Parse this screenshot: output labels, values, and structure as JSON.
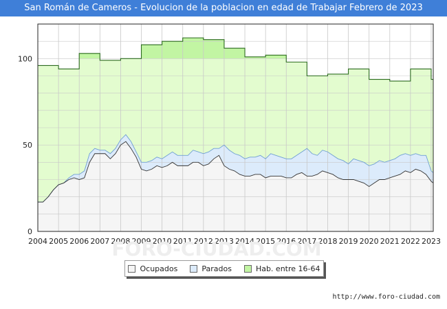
{
  "title": "San Román de Cameros - Evolucion de la poblacion en edad de Trabajar Febrero de 2023",
  "source_url": "http://www.foro-ciudad.com",
  "watermark": "FORO-CIUDAD.COM",
  "colors": {
    "title_bg": "#3f7fd8",
    "hab_fill": "#e3fccf",
    "hab_fill_highlight": "#c2f5a3",
    "hab_line": "#2b6a1e",
    "parados_fill": "#dcebfb",
    "parados_line": "#6f9fd3",
    "ocupados_fill": "#f5f5f5",
    "ocupados_line": "#333333",
    "grid": "#c8c8c8"
  },
  "chart_data": {
    "type": "area",
    "title": "San Román de Cameros - Evolucion de la poblacion en edad de Trabajar Febrero de 2023",
    "xlabel": "",
    "ylabel": "",
    "xlim": [
      2004,
      2023
    ],
    "ylim": [
      0,
      120
    ],
    "x_ticks": [
      "2004",
      "2005",
      "2006",
      "2007",
      "2008",
      "2009",
      "2010",
      "2011",
      "2012",
      "2013",
      "2014",
      "2015",
      "2016",
      "2017",
      "2018",
      "2019",
      "2020",
      "2021",
      "2022",
      "2023"
    ],
    "y_ticks": [
      0,
      50,
      100
    ],
    "grid": true,
    "legend_position": "bottom",
    "legend": [
      "Ocupados",
      "Parados",
      "Hab. entre 16-64"
    ],
    "hab_16_64": {
      "name": "Hab. entre 16-64",
      "x": [
        2004,
        2005,
        2006,
        2007,
        2008,
        2009,
        2010,
        2011,
        2012,
        2013,
        2014,
        2015,
        2016,
        2017,
        2018,
        2019,
        2020,
        2021,
        2022,
        2023
      ],
      "values": [
        96,
        94,
        103,
        99,
        100,
        108,
        110,
        112,
        111,
        106,
        101,
        102,
        98,
        90,
        91,
        94,
        88,
        87,
        94,
        88
      ]
    },
    "parados_top": {
      "name": "Parados",
      "x": [
        2004.0,
        2004.25,
        2004.5,
        2004.75,
        2005.0,
        2005.25,
        2005.5,
        2005.75,
        2006.0,
        2006.25,
        2006.5,
        2006.75,
        2007.0,
        2007.25,
        2007.5,
        2007.75,
        2008.0,
        2008.25,
        2008.5,
        2008.75,
        2009.0,
        2009.25,
        2009.5,
        2009.75,
        2010.0,
        2010.25,
        2010.5,
        2010.75,
        2011.0,
        2011.25,
        2011.5,
        2011.75,
        2012.0,
        2012.25,
        2012.5,
        2012.75,
        2013.0,
        2013.25,
        2013.5,
        2013.75,
        2014.0,
        2014.25,
        2014.5,
        2014.75,
        2015.0,
        2015.25,
        2015.5,
        2015.75,
        2016.0,
        2016.25,
        2016.5,
        2016.75,
        2017.0,
        2017.25,
        2017.5,
        2017.75,
        2018.0,
        2018.25,
        2018.5,
        2018.75,
        2019.0,
        2019.25,
        2019.5,
        2019.75,
        2020.0,
        2020.25,
        2020.5,
        2020.75,
        2021.0,
        2021.25,
        2021.5,
        2021.75,
        2022.0,
        2022.25,
        2022.5,
        2022.75,
        2023.0,
        2023.1
      ],
      "values": [
        17,
        17,
        20,
        24,
        27,
        28,
        31,
        33,
        33,
        35,
        45,
        48,
        47,
        47,
        45,
        48,
        53,
        56,
        52,
        46,
        40,
        40,
        41,
        43,
        42,
        44,
        46,
        44,
        44,
        44,
        47,
        46,
        45,
        46,
        48,
        48,
        50,
        47,
        45,
        44,
        42,
        43,
        43,
        44,
        42,
        45,
        44,
        43,
        42,
        42,
        44,
        46,
        48,
        45,
        44,
        47,
        46,
        44,
        42,
        41,
        39,
        42,
        41,
        40,
        38,
        39,
        41,
        40,
        41,
        42,
        44,
        45,
        44,
        45,
        44,
        44,
        35,
        34
      ]
    },
    "ocupados": {
      "name": "Ocupados",
      "x": [
        2004.0,
        2004.25,
        2004.5,
        2004.75,
        2005.0,
        2005.25,
        2005.5,
        2005.75,
        2006.0,
        2006.25,
        2006.5,
        2006.75,
        2007.0,
        2007.25,
        2007.5,
        2007.75,
        2008.0,
        2008.25,
        2008.5,
        2008.75,
        2009.0,
        2009.25,
        2009.5,
        2009.75,
        2010.0,
        2010.25,
        2010.5,
        2010.75,
        2011.0,
        2011.25,
        2011.5,
        2011.75,
        2012.0,
        2012.25,
        2012.5,
        2012.75,
        2013.0,
        2013.25,
        2013.5,
        2013.75,
        2014.0,
        2014.25,
        2014.5,
        2014.75,
        2015.0,
        2015.25,
        2015.5,
        2015.75,
        2016.0,
        2016.25,
        2016.5,
        2016.75,
        2017.0,
        2017.25,
        2017.5,
        2017.75,
        2018.0,
        2018.25,
        2018.5,
        2018.75,
        2019.0,
        2019.25,
        2019.5,
        2019.75,
        2020.0,
        2020.25,
        2020.5,
        2020.75,
        2021.0,
        2021.25,
        2021.5,
        2021.75,
        2022.0,
        2022.25,
        2022.5,
        2022.75,
        2023.0,
        2023.1
      ],
      "values": [
        17,
        17,
        20,
        24,
        27,
        28,
        30,
        31,
        30,
        31,
        40,
        45,
        45,
        45,
        42,
        45,
        50,
        52,
        48,
        43,
        36,
        35,
        36,
        38,
        37,
        38,
        40,
        38,
        38,
        38,
        40,
        40,
        38,
        39,
        42,
        44,
        38,
        36,
        35,
        33,
        32,
        32,
        33,
        33,
        31,
        32,
        32,
        32,
        31,
        31,
        33,
        34,
        32,
        32,
        33,
        35,
        34,
        33,
        31,
        30,
        30,
        30,
        29,
        28,
        26,
        28,
        30,
        30,
        31,
        32,
        33,
        35,
        34,
        36,
        35,
        33,
        29,
        28
      ]
    }
  }
}
